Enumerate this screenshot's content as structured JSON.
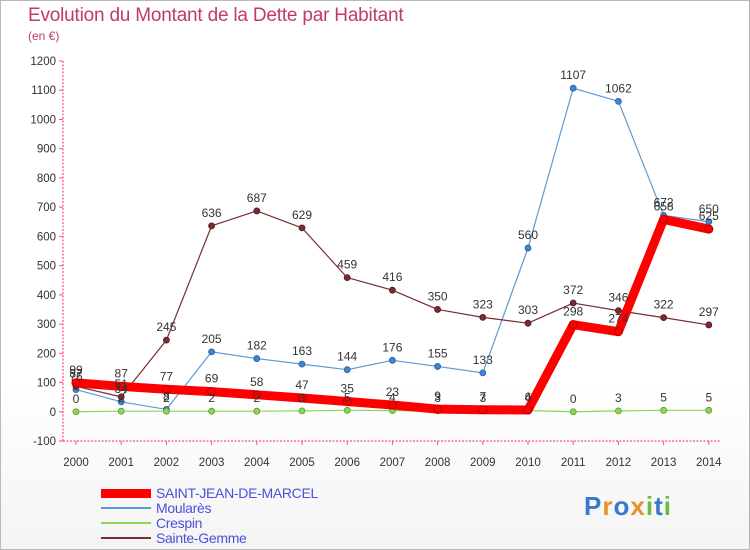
{
  "title": "Evolution du Montant de la Dette par Habitant",
  "subtitle": "(en €)",
  "logo": "Proxiti",
  "chart_data": {
    "type": "line",
    "x": [
      "2000",
      "2001",
      "2002",
      "2003",
      "2004",
      "2005",
      "2006",
      "2007",
      "2008",
      "2009",
      "2010",
      "2011",
      "2012",
      "2013",
      "2014"
    ],
    "ylim": [
      -100,
      1200
    ],
    "yticks": [
      -100,
      0,
      100,
      200,
      300,
      400,
      500,
      600,
      700,
      800,
      900,
      1000,
      1100,
      1200
    ],
    "grid": false,
    "legend": "bottom-left",
    "series": [
      {
        "name": "Moularès",
        "color": "#5b9bd5",
        "values": [
          76,
          34,
          8,
          205,
          182,
          163,
          144,
          176,
          155,
          133,
          560,
          1107,
          1062,
          672,
          650
        ]
      },
      {
        "name": "Crespin",
        "color": "#8fd45a",
        "values": [
          0,
          2,
          2,
          2,
          2,
          3,
          5,
          4,
          3,
          3,
          4,
          0,
          3,
          5,
          5
        ]
      },
      {
        "name": "Sainte-Gemme",
        "color": "#7a2b33",
        "values": [
          87,
          51,
          245,
          636,
          687,
          629,
          459,
          416,
          350,
          323,
          303,
          372,
          346,
          322,
          297
        ]
      },
      {
        "name": "SAINT-JEAN-DE-MARCEL",
        "color": "#ff0000",
        "values": [
          99,
          87,
          77,
          69,
          58,
          47,
          35,
          23,
          9,
          7,
          6,
          298,
          274,
          658,
          625
        ]
      }
    ],
    "legend_order": [
      "SAINT-JEAN-DE-MARCEL",
      "Moularès",
      "Crespin",
      "Sainte-Gemme"
    ]
  }
}
